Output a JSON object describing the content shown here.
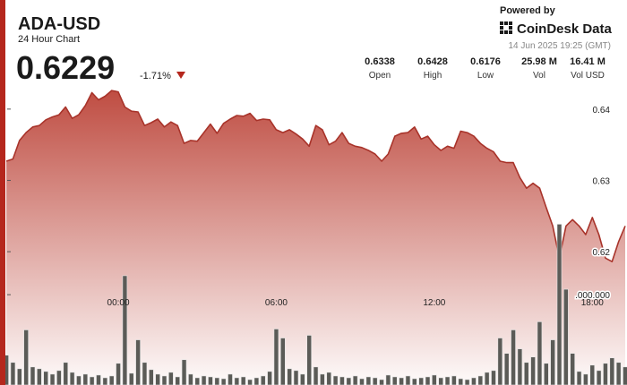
{
  "header": {
    "symbol": "ADA-USD",
    "subtitle": "24 Hour Chart",
    "price": "0.6229",
    "change": "-1.71%",
    "powered_by": "Powered by",
    "brand": "CoinDesk Data",
    "timestamp": "14 Jun 2025 19:25 (GMT)"
  },
  "stats": [
    {
      "value": "0.6338",
      "label": "Open"
    },
    {
      "value": "0.6428",
      "label": "High"
    },
    {
      "value": "0.6176",
      "label": "Low"
    },
    {
      "value": "25.98 M",
      "label": "Vol"
    },
    {
      "value": "16.41 M",
      "label": "Vol USD"
    }
  ],
  "chart_data": {
    "type": "line",
    "categories": [
      null,
      null,
      null,
      null,
      null,
      null,
      null,
      null,
      null,
      null,
      null,
      null,
      null,
      null,
      null,
      null,
      null,
      "00:00",
      null,
      null,
      null,
      null,
      null,
      null,
      null,
      null,
      null,
      null,
      null,
      null,
      null,
      null,
      null,
      null,
      null,
      null,
      null,
      null,
      null,
      null,
      null,
      "06:00",
      null,
      null,
      null,
      null,
      null,
      null,
      null,
      null,
      null,
      null,
      null,
      null,
      null,
      null,
      null,
      null,
      null,
      null,
      null,
      null,
      null,
      null,
      null,
      "12:00",
      null,
      null,
      null,
      null,
      null,
      null,
      null,
      null,
      null,
      null,
      null,
      null,
      null,
      null,
      null,
      null,
      null,
      null,
      null,
      null,
      null,
      null,
      null,
      "18:00",
      null,
      null,
      null,
      null,
      null
    ],
    "series": [
      {
        "color": "#a8332a",
        "values": [
          0.6327,
          0.633,
          0.6356,
          0.6367,
          0.6375,
          0.6377,
          0.6385,
          0.6389,
          0.6392,
          0.6403,
          0.6387,
          0.6392,
          0.6405,
          0.6423,
          0.6413,
          0.6418,
          0.6426,
          0.6424,
          0.6403,
          0.6397,
          0.6396,
          0.6377,
          0.6381,
          0.6386,
          0.6375,
          0.6382,
          0.6377,
          0.6352,
          0.6356,
          0.6355,
          0.6367,
          0.6379,
          0.6366,
          0.638,
          0.6386,
          0.6391,
          0.639,
          0.6394,
          0.6384,
          0.6386,
          0.6385,
          0.6371,
          0.6367,
          0.6371,
          0.6365,
          0.6358,
          0.6348,
          0.6377,
          0.6371,
          0.635,
          0.6355,
          0.6367,
          0.6352,
          0.6348,
          0.6346,
          0.6342,
          0.6337,
          0.6327,
          0.6337,
          0.6362,
          0.6366,
          0.6367,
          0.6375,
          0.6358,
          0.6362,
          0.635,
          0.6342,
          0.6348,
          0.6345,
          0.6369,
          0.6367,
          0.6362,
          0.6352,
          0.6345,
          0.634,
          0.6327,
          0.6325,
          0.6325,
          0.6304,
          0.6289,
          0.6296,
          0.6289,
          0.6262,
          0.6236,
          0.6191,
          0.6236,
          0.6245,
          0.6236,
          0.6224,
          0.6248,
          0.6224,
          0.6191,
          0.6186,
          0.6214,
          0.6236
        ]
      },
      {
        "type": "bar",
        "axis": "y2",
        "color": "#5b5b57",
        "values": [
          330000,
          250000,
          180000,
          610000,
          200000,
          180000,
          150000,
          120000,
          160000,
          250000,
          140000,
          100000,
          120000,
          90000,
          110000,
          80000,
          100000,
          240000,
          1210000,
          130000,
          500000,
          250000,
          170000,
          120000,
          100000,
          140000,
          90000,
          280000,
          120000,
          80000,
          100000,
          90000,
          80000,
          70000,
          120000,
          80000,
          90000,
          60000,
          80000,
          100000,
          150000,
          620000,
          520000,
          180000,
          160000,
          120000,
          550000,
          200000,
          120000,
          140000,
          100000,
          90000,
          80000,
          100000,
          70000,
          90000,
          80000,
          60000,
          110000,
          90000,
          80000,
          100000,
          70000,
          80000,
          90000,
          110000,
          80000,
          90000,
          100000,
          70000,
          60000,
          80000,
          100000,
          140000,
          160000,
          520000,
          350000,
          610000,
          400000,
          250000,
          310000,
          700000,
          240000,
          500000,
          1780000,
          1060000,
          350000,
          150000,
          120000,
          220000,
          160000,
          240000,
          300000,
          250000,
          200000
        ]
      }
    ],
    "ylim": [
      0.6013,
      0.644
    ],
    "yticks": [
      0.62,
      0.63,
      0.64
    ],
    "y2lim": [
      0,
      3370000
    ],
    "y2ticks": [
      {
        "value": 1000000,
        "label": ".000.000"
      }
    ]
  }
}
